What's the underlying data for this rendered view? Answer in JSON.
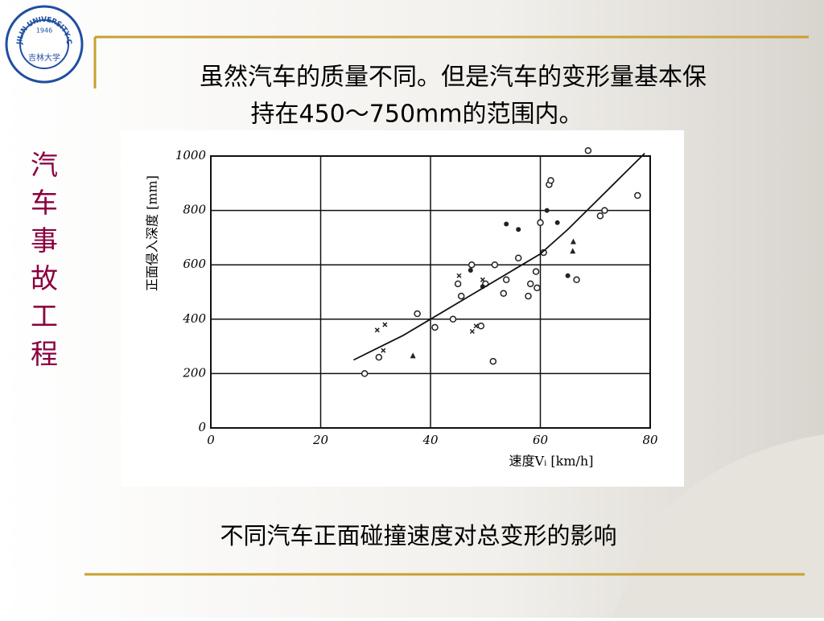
{
  "slide": {
    "logo": {
      "ring": "JILIN UNIVERSITY·CHINA",
      "year": "1946",
      "name": "吉林大学"
    },
    "heading": [
      "虽然汽车的质量不同。但是汽车的变形量基本保",
      "持在450～750mm的范围内。"
    ],
    "sidebar": [
      "汽",
      "车",
      "事",
      "故",
      "工",
      "程"
    ],
    "caption": "不同汽车正面碰撞速度对总变形的影响"
  },
  "chart_data": {
    "type": "scatter",
    "xlabel": "速度Vᵢ  [km/h]",
    "ylabel": "正面侵入深度 [mm]",
    "xlim": [
      0,
      80
    ],
    "xticks": [
      0,
      20,
      40,
      60,
      80
    ],
    "ylim": [
      0,
      1000
    ],
    "yticks": [
      0,
      200,
      400,
      600,
      800,
      1000
    ],
    "grid": true,
    "series": [
      {
        "marker": "circle",
        "color": "#222222",
        "x": [
          28,
          30.6,
          37.6,
          40.8,
          44.1,
          45,
          45.6,
          47.5,
          49.2,
          50,
          51.4,
          51.7,
          53.3,
          53.8,
          56,
          57.8,
          58.2,
          59.2,
          59.4,
          60.6,
          61.6,
          61.9,
          66.6,
          68.7,
          70.9,
          71.7,
          77.7,
          60
        ],
        "values": [
          200,
          260,
          420,
          370,
          400,
          530,
          485,
          600,
          375,
          530,
          245,
          600,
          495,
          545,
          625,
          485,
          530,
          575,
          515,
          645,
          895,
          910,
          545,
          1020,
          780,
          800,
          855,
          755
        ]
      },
      {
        "marker": "dot",
        "color": "#222222",
        "x": [
          53.8,
          56,
          61.2,
          63.1,
          65,
          49.5,
          47.3
        ],
        "values": [
          750,
          730,
          800,
          755,
          560,
          520,
          580
        ]
      },
      {
        "marker": "triangle",
        "color": "#222222",
        "x": [
          36.8,
          66,
          65.9
        ],
        "values": [
          265,
          685,
          650
        ]
      },
      {
        "marker": "cross",
        "color": "#222222",
        "x": [
          30.3,
          31.7,
          31.4,
          47.6,
          48.3,
          49.5,
          45.2
        ],
        "values": [
          360,
          380,
          285,
          355,
          375,
          545,
          560
        ]
      },
      {
        "marker": "line",
        "color": "#111111",
        "x": [
          26,
          30,
          35,
          40,
          45,
          50,
          55,
          60,
          65,
          70,
          75,
          79
        ],
        "values": [
          250,
          290,
          340,
          400,
          460,
          520,
          580,
          640,
          730,
          830,
          930,
          1010
        ]
      }
    ]
  }
}
